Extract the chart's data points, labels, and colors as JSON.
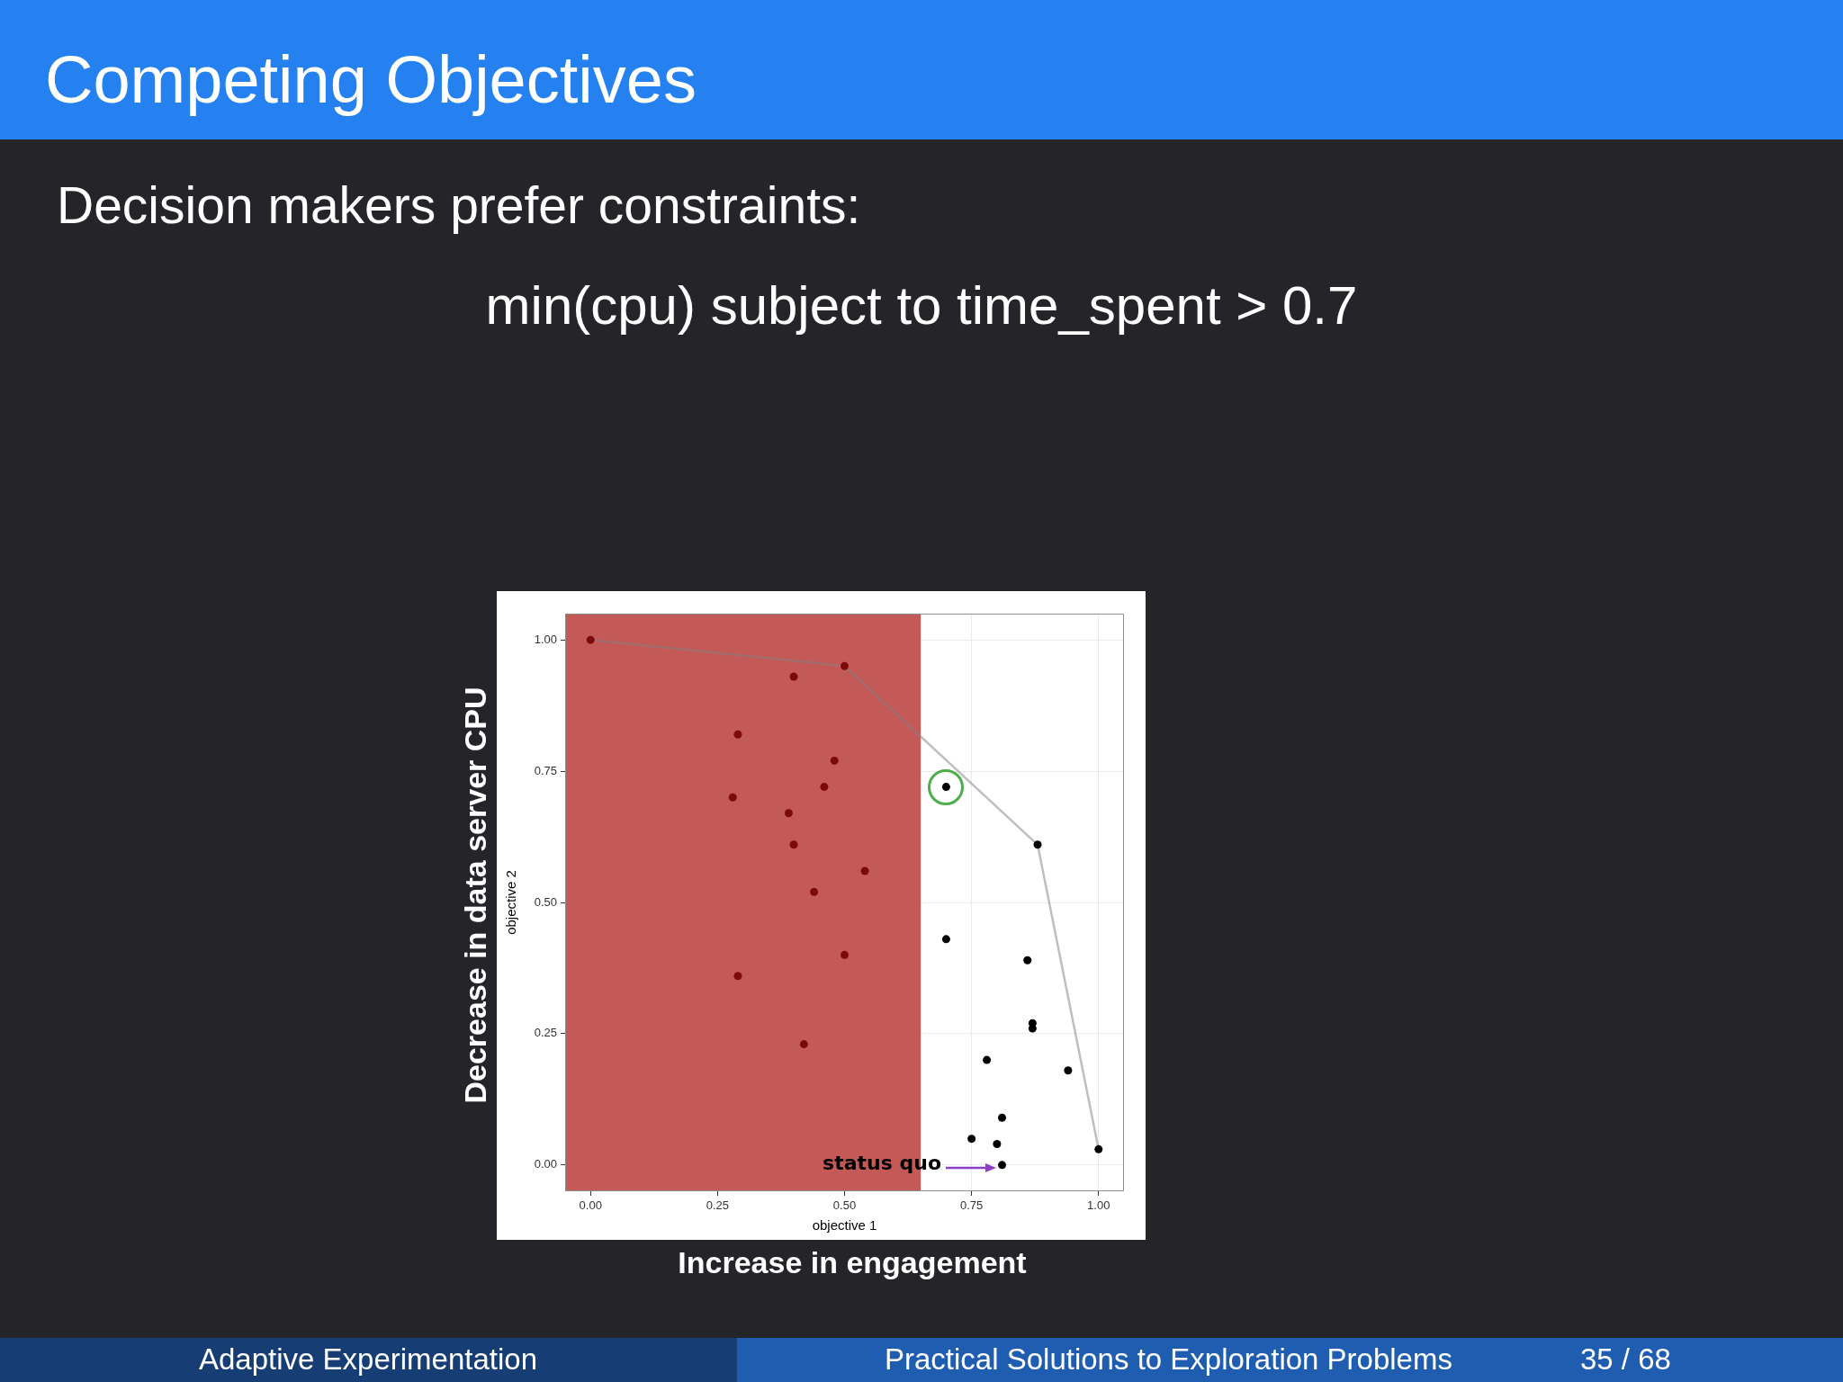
{
  "chart_data": {
    "type": "scatter",
    "title": "Competing Objectives",
    "subtitle": "Decision makers prefer constraints:",
    "xlabel": "objective 1",
    "ylabel": "objective 2",
    "annotations": [
      "min(cpu) subject to time_spent > 0.7",
      "Decrease in data server CPU",
      "Increase in engagement",
      "Adaptive Experimentation",
      "Practical Solutions to Exploration Problems",
      "35 / 68",
      "status quo"
    ],
    "xlim": [
      -0.05,
      1.05
    ],
    "ylim": [
      -0.05,
      1.05
    ],
    "xticks": [
      {
        "value": 0,
        "label": "0.00"
      },
      {
        "value": 0.25,
        "label": "0.25"
      },
      {
        "value": 0.5,
        "label": "0.50"
      },
      {
        "value": 0.75,
        "label": "0.75"
      },
      {
        "value": 1,
        "label": "1.00"
      }
    ],
    "yticks": [
      {
        "value": 0,
        "label": "0.00"
      },
      {
        "value": 0.25,
        "label": "0.25"
      },
      {
        "value": 0.5,
        "label": "0.50"
      },
      {
        "value": 0.75,
        "label": "0.75"
      },
      {
        "value": 1,
        "label": "1.00"
      }
    ],
    "grid": true,
    "bands": [
      {
        "axis": "x",
        "from": -0.05,
        "to": 0.65,
        "color": "#c45a58"
      }
    ],
    "series": [
      {
        "type": "line",
        "x": [
          0,
          0.5,
          0.88,
          1
        ],
        "values": [
          1,
          0.95,
          0.61,
          0.03
        ],
        "color": "#808080",
        "marker": "none"
      },
      {
        "type": "scatter",
        "x": [
          0,
          0.5,
          0.4,
          0.29,
          0.48,
          0.46,
          0.28,
          0.39,
          0.4,
          0.54,
          0.44,
          0.5,
          0.29,
          0.42,
          0.7,
          0.88,
          0.7,
          0.86,
          0.87,
          0.87,
          0.78,
          0.94,
          0.81,
          0.75,
          0.8,
          1,
          0.81
        ],
        "values": [
          1,
          0.95,
          0.93,
          0.82,
          0.77,
          0.72,
          0.7,
          0.67,
          0.61,
          0.56,
          0.52,
          0.4,
          0.36,
          0.23,
          0.72,
          0.61,
          0.43,
          0.39,
          0.27,
          0.26,
          0.2,
          0.18,
          0.09,
          0.05,
          0.04,
          0.03,
          0
        ],
        "colors": [
          "#7d0a0a",
          "#7d0a0a",
          "#7d0a0a",
          "#7d0a0a",
          "#7d0a0a",
          "#7d0a0a",
          "#7d0a0a",
          "#7d0a0a",
          "#7d0a0a",
          "#7d0a0a",
          "#7d0a0a",
          "#7d0a0a",
          "#7d0a0a",
          "#7d0a0a",
          "#000000",
          "#000000",
          "#000000",
          "#000000",
          "#000000",
          "#000000",
          "#000000",
          "#000000",
          "#000000",
          "#000000",
          "#000000",
          "#000000",
          "#000000"
        ],
        "marker": "circle"
      }
    ]
  }
}
